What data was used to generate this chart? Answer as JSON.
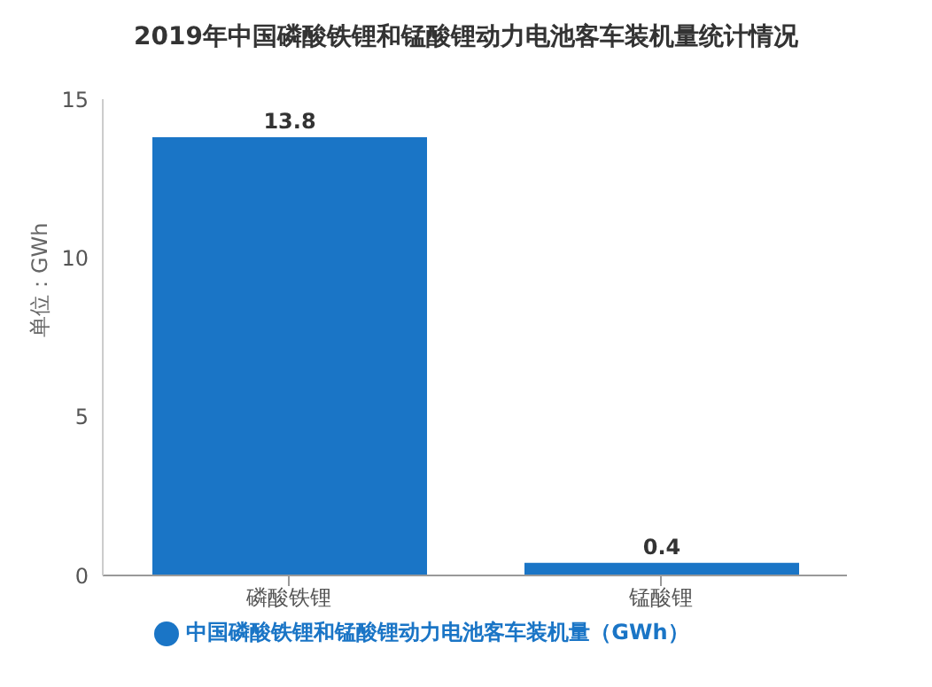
{
  "chart_data": {
    "type": "bar",
    "title": "2019年中国磷酸铁锂和锰酸锂动力电池客车装机量统计情况",
    "ylabel": "单位：GWh",
    "categories": [
      "磷酸铁锂",
      "锰酸锂"
    ],
    "series": [
      {
        "name": "中国磷酸铁锂和锰酸锂动力电池客车装机量（GWh）",
        "color": "#1a75c6",
        "values": [
          13.8,
          0.4
        ]
      }
    ],
    "ylim": [
      0,
      15
    ],
    "yticks": [
      0,
      5,
      10,
      15
    ],
    "data_labels": true,
    "legend": "bottom",
    "grid": false
  }
}
